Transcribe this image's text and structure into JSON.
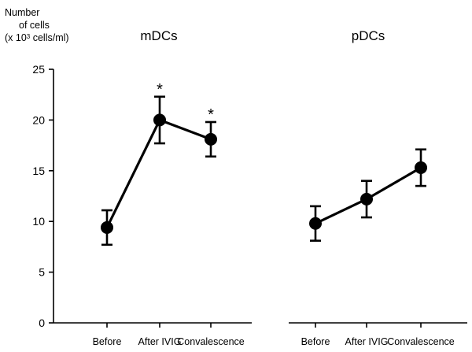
{
  "chart_data": {
    "type": "line",
    "y_axis_title": {
      "line1": "Number",
      "line2": "of cells",
      "line3_pre": "(x 10",
      "line3_sup": "3",
      "line3_post": " cells/ml)"
    },
    "ylim": [
      0,
      25
    ],
    "yticks": [
      "0",
      "5",
      "10",
      "15",
      "20",
      "25"
    ],
    "categories": [
      "Before",
      "After IVIG",
      "Convalescence"
    ],
    "marker_color": "#000000",
    "line_color": "#000000",
    "panels": [
      {
        "title": "mDCs",
        "values": [
          9.4,
          20.0,
          18.1
        ],
        "error": [
          1.7,
          2.3,
          1.7
        ],
        "annotations": [
          "",
          "*",
          "*"
        ]
      },
      {
        "title": "pDCs",
        "values": [
          9.8,
          12.2,
          15.3
        ],
        "error": [
          1.7,
          1.8,
          1.8
        ],
        "annotations": [
          "",
          "",
          ""
        ]
      }
    ]
  }
}
